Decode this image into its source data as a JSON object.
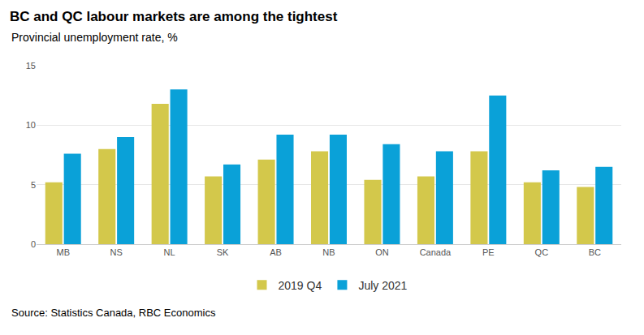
{
  "chart_data": {
    "type": "bar",
    "title": "BC and QC labour markets are among the tightest",
    "subtitle": "Provincial unemployment rate, %",
    "source": "Source: Statistics Canada, RBC Economics",
    "categories": [
      "MB",
      "NS",
      "NL",
      "SK",
      "AB",
      "NB",
      "ON",
      "Canada",
      "PE",
      "QC",
      "BC"
    ],
    "series": [
      {
        "name": "2019 Q4",
        "color": "#d3c84b",
        "values": [
          5.2,
          8.0,
          11.8,
          5.7,
          7.1,
          7.8,
          5.4,
          5.7,
          7.8,
          5.2,
          4.8
        ]
      },
      {
        "name": "July 2021",
        "color": "#0aa1d8",
        "values": [
          7.6,
          9.0,
          13.0,
          6.7,
          9.2,
          9.2,
          8.4,
          7.8,
          12.5,
          6.2,
          6.5
        ]
      }
    ],
    "ylim": [
      0,
      15
    ],
    "yticks": [
      0,
      5,
      10,
      15
    ],
    "grid": true,
    "legend": "bottom"
  }
}
